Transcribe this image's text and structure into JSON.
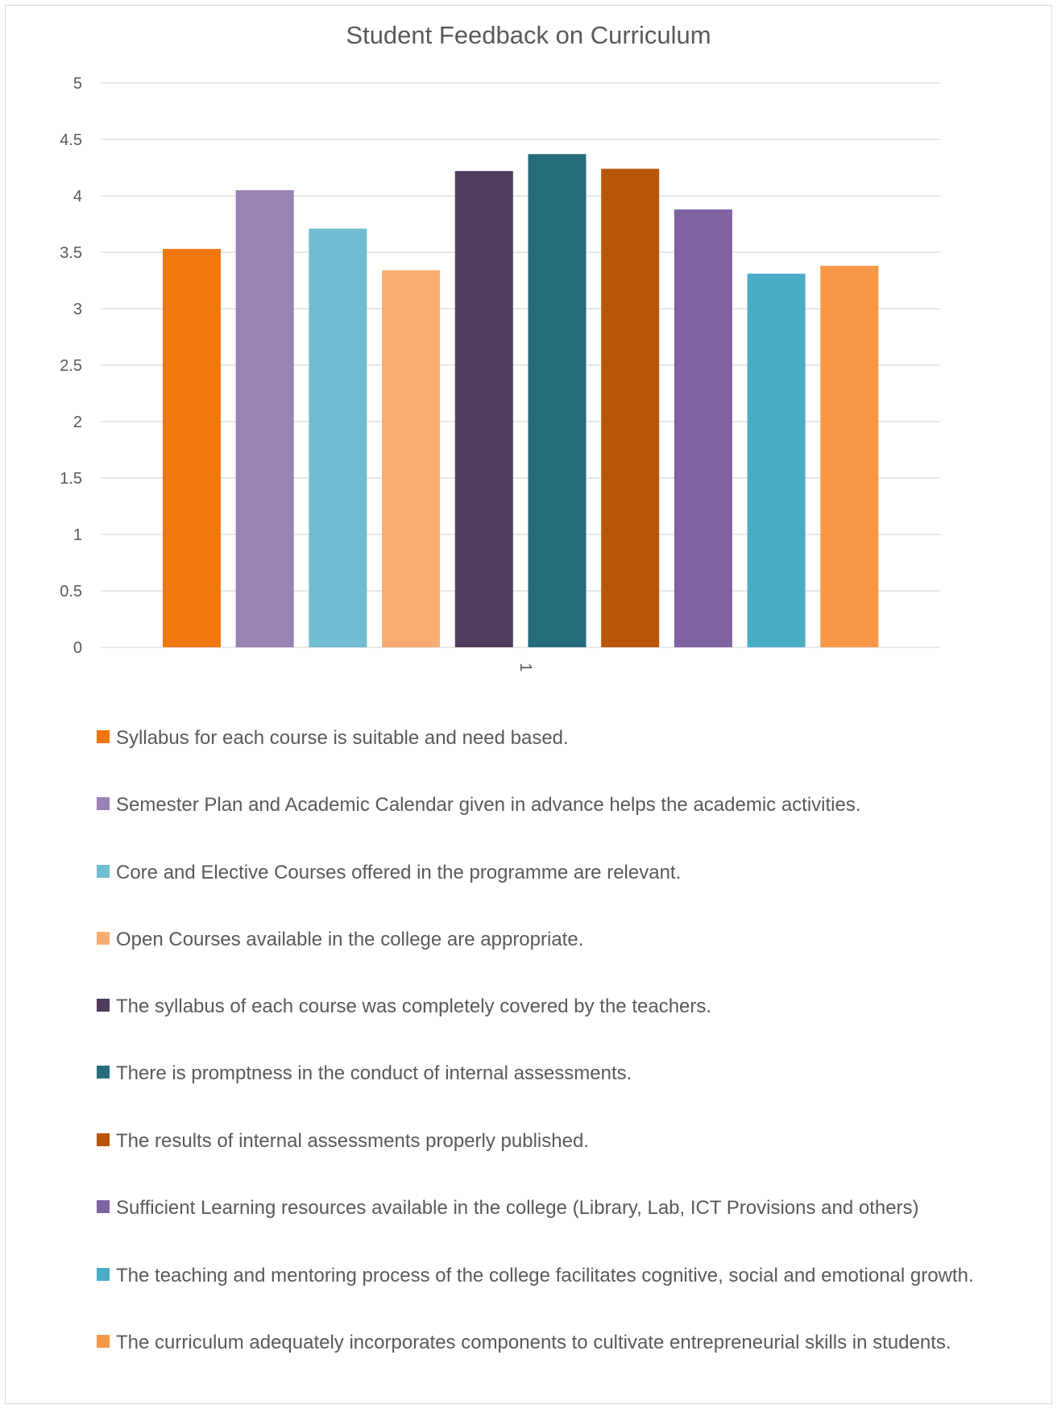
{
  "chart_data": {
    "type": "bar",
    "title": "Student Feedback on Curriculum",
    "categories": [
      "1"
    ],
    "ylim": [
      0,
      5
    ],
    "yticks": [
      "0",
      "0.5",
      "1",
      "1.5",
      "2",
      "2.5",
      "3",
      "3.5",
      "4",
      "4.5",
      "5"
    ],
    "grid": true,
    "legend_position": "bottom",
    "series": [
      {
        "name": "Syllabus for each course is suitable and need based.",
        "values": [
          3.53
        ],
        "color": "#F0760E"
      },
      {
        "name": "Semester Plan and Academic Calendar given in advance helps the academic activities.",
        "values": [
          4.05
        ],
        "color": "#9982B4"
      },
      {
        "name": "Core and Elective Courses offered in the programme are relevant.",
        "values": [
          3.71
        ],
        "color": "#71BDD2"
      },
      {
        "name": "Open Courses available in the college are appropriate.",
        "values": [
          3.34
        ],
        "color": "#F8AC71"
      },
      {
        "name": "The syllabus of each course was completely covered by the teachers.",
        "values": [
          4.22
        ],
        "color": "#4E3B5E"
      },
      {
        "name": "There is promptness in the conduct of internal assessments.",
        "values": [
          4.37
        ],
        "color": "#256C7C"
      },
      {
        "name": "The results of internal assessments properly published.",
        "values": [
          4.24
        ],
        "color": "#B85507"
      },
      {
        "name": "Sufficient Learning resources available in the college (Library, Lab, ICT Provisions and others)",
        "values": [
          3.88
        ],
        "color": "#7F63A0"
      },
      {
        "name": "The teaching and mentoring process of the college facilitates cognitive, social and emotional growth.",
        "values": [
          3.31
        ],
        "color": "#4AACC5"
      },
      {
        "name": "The curriculum adequately incorporates components to cultivate entrepreneurial skills in students.",
        "values": [
          3.38
        ],
        "color": "#F79748"
      }
    ]
  }
}
